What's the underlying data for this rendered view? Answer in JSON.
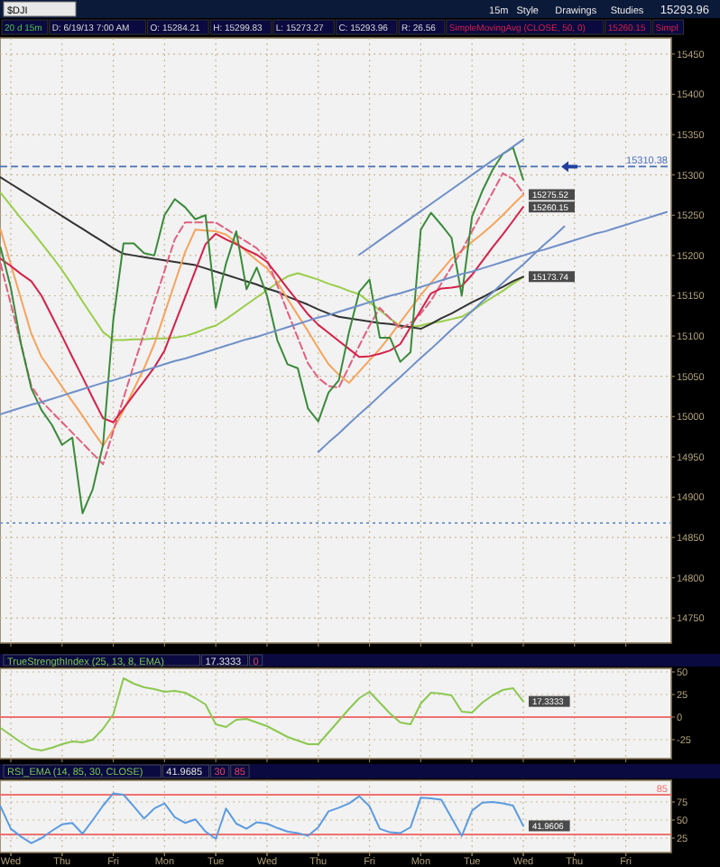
{
  "chart_data": [
    {
      "type": "line",
      "title": "$DJI",
      "annotations": [
        "15m",
        "Style",
        "Drawings",
        "Studies",
        "15293.96",
        "20 d 15m",
        "D: 6/19/13 7:00 AM",
        "O: 15284.21",
        "H: 15299.83",
        "L: 15273.27",
        "C: 15293.96",
        "R: 26.56",
        "SimpleMovingAvg (CLOSE, 50, 0)",
        "15260.15",
        "Simpl"
      ],
      "categories": [
        null,
        null,
        null,
        null,
        null,
        null,
        null,
        null,
        null,
        null,
        null,
        null,
        null,
        null,
        null,
        null,
        null,
        null,
        null,
        null,
        null,
        null,
        null,
        null,
        null,
        null,
        null,
        null,
        null,
        null,
        null,
        null,
        null,
        null,
        null,
        null,
        null,
        null,
        null,
        null,
        null,
        null,
        null,
        null,
        null,
        null,
        null,
        null,
        null,
        null,
        null,
        null,
        null,
        null,
        null,
        null,
        null,
        null,
        null,
        null,
        null,
        null,
        null,
        null,
        null,
        null
      ],
      "ylim": [
        14719,
        15470
      ],
      "yticks": [
        14750,
        14800,
        14850,
        14900,
        14950,
        15000,
        15050,
        15100,
        15150,
        15200,
        15250,
        15300,
        15350,
        15400,
        15450
      ],
      "grid": true,
      "tick_labels": "y",
      "ref_lines": [
        {
          "axis": "y",
          "value": 15310.38,
          "label": "15310.38",
          "color": "#4a6fb5",
          "line_style": "dashed"
        },
        {
          "axis": "y",
          "value": 14868,
          "label": null,
          "color": "#6f8fc8",
          "line_style": "dotted"
        }
      ],
      "series": [
        {
          "color": "#9acd4a",
          "values": [
            15278,
            15262,
            15246,
            15231,
            15215,
            15199,
            15182,
            15163,
            15143,
            15124,
            15105,
            15095,
            15095,
            15096,
            15096,
            15097,
            15097,
            15098,
            15100,
            15104,
            15109,
            15113,
            15121,
            15130,
            15139,
            15148,
            15157,
            15166,
            15174,
            15178,
            15174,
            15170,
            15165,
            15161,
            15156,
            15152,
            15142,
            15132,
            15122,
            15112,
            15111,
            15113,
            15116,
            15118,
            15121,
            15124,
            15131,
            15140,
            15148,
            15156,
            15165,
            15173,
            null,
            null,
            null,
            null,
            null,
            null,
            null,
            null,
            null,
            null,
            null,
            null,
            null,
            null
          ]
        },
        {
          "color": "#333333",
          "values": [
            15297,
            15289,
            15281,
            15273,
            15265,
            15257,
            15249,
            15241,
            15233,
            15225,
            15217,
            15209,
            15202,
            15200,
            15198,
            15196,
            15194,
            15192,
            15190,
            15188,
            15184,
            15180,
            15176,
            15172,
            15168,
            15164,
            15159,
            15155,
            15149,
            15144,
            15139,
            15133,
            15128,
            15124,
            15122,
            15120,
            15118,
            15116,
            15115,
            15113,
            15111,
            15109,
            15115,
            15122,
            15128,
            15135,
            15142,
            15148,
            15155,
            15161,
            15168,
            15173.74,
            null,
            null,
            null,
            null,
            null,
            null,
            null,
            null,
            null,
            null,
            null,
            null,
            null,
            null
          ],
          "value_labels": [
            null,
            null,
            null,
            null,
            null,
            null,
            null,
            null,
            null,
            null,
            null,
            null,
            null,
            null,
            null,
            null,
            null,
            null,
            null,
            null,
            null,
            null,
            null,
            null,
            null,
            null,
            null,
            null,
            null,
            null,
            null,
            null,
            null,
            null,
            null,
            null,
            null,
            null,
            null,
            null,
            null,
            null,
            null,
            null,
            null,
            null,
            null,
            null,
            null,
            null,
            null,
            "15173.74",
            null,
            null,
            null,
            null,
            null,
            null,
            null,
            null,
            null,
            null,
            null,
            null,
            null,
            null
          ]
        },
        {
          "color": "#f5a35c",
          "values": [
            15232,
            15189,
            15146,
            15103,
            15074,
            15056,
            15037,
            15019,
            15001,
            14982,
            14964,
            14984,
            15008,
            15034,
            15060,
            15090,
            15128,
            15166,
            15204,
            15232,
            15231,
            15230,
            15226,
            15216,
            15205,
            15194,
            15184,
            15167,
            15146,
            15126,
            15106,
            15085,
            15065,
            15052,
            15042,
            15056,
            15070,
            15084,
            15100,
            15117,
            15134,
            15151,
            15166,
            15181,
            15196,
            15206,
            15217,
            15227,
            15238,
            15250,
            15263,
            15275.52,
            null,
            null,
            null,
            null,
            null,
            null,
            null,
            null,
            null,
            null,
            null,
            null,
            null,
            null
          ],
          "value_labels": [
            null,
            null,
            null,
            null,
            null,
            null,
            null,
            null,
            null,
            null,
            null,
            null,
            null,
            null,
            null,
            null,
            null,
            null,
            null,
            null,
            null,
            null,
            null,
            null,
            null,
            null,
            null,
            null,
            null,
            null,
            null,
            null,
            null,
            null,
            null,
            null,
            null,
            null,
            null,
            null,
            null,
            null,
            null,
            null,
            null,
            null,
            null,
            null,
            null,
            null,
            null,
            "15275.52",
            null,
            null,
            null,
            null,
            null,
            null,
            null,
            null,
            null,
            null,
            null,
            null,
            null,
            null
          ]
        },
        {
          "color": "#e06080",
          "line_style": "dashed",
          "values": [
            15190,
            15140,
            15090,
            15038,
            15019,
            15006,
            14993,
            14980,
            14967,
            14954,
            14941,
            14982,
            15023,
            15064,
            15103,
            15142,
            15181,
            15220,
            15241,
            15241,
            15241,
            15241,
            15233,
            15225,
            15217,
            15209,
            15195,
            15163,
            15130,
            15098,
            15066,
            15048,
            15038,
            15036,
            15062,
            15088,
            15113,
            15135,
            15122,
            15109,
            15116,
            15128,
            15144,
            15165,
            15186,
            15206,
            15230,
            15254,
            15278,
            15302,
            15295,
            15277,
            null,
            null,
            null,
            null,
            null,
            null,
            null,
            null,
            null,
            null,
            null,
            null,
            null,
            null
          ]
        },
        {
          "color": "#d6204a",
          "values": [
            15196,
            15187,
            15177,
            15168,
            15150,
            15125,
            15100,
            15074,
            15049,
            15023,
            14998,
            14993,
            15010,
            15027,
            15044,
            15061,
            15082,
            15115,
            15148,
            15181,
            15214,
            15227,
            15220,
            15214,
            15207,
            15201,
            15192,
            15176,
            15159,
            15143,
            15127,
            15114,
            15104,
            15094,
            15084,
            15074,
            15075,
            15078,
            15082,
            15090,
            15111,
            15132,
            15153,
            15159,
            15160,
            15162,
            15176,
            15193,
            15210,
            15226,
            15243,
            15260.15,
            null,
            null,
            null,
            null,
            null,
            null,
            null,
            null,
            null,
            null,
            null,
            null,
            null,
            null
          ],
          "value_labels": [
            null,
            null,
            null,
            null,
            null,
            null,
            null,
            null,
            null,
            null,
            null,
            null,
            null,
            null,
            null,
            null,
            null,
            null,
            null,
            null,
            null,
            null,
            null,
            null,
            null,
            null,
            null,
            null,
            null,
            null,
            null,
            null,
            null,
            null,
            null,
            null,
            null,
            null,
            null,
            null,
            null,
            null,
            null,
            null,
            null,
            null,
            null,
            null,
            null,
            null,
            null,
            "15260.15",
            null,
            null,
            null,
            null,
            null,
            null,
            null,
            null,
            null,
            null,
            null,
            null,
            null,
            null
          ]
        },
        {
          "color": "#3a8a3a",
          "values": [
            15210,
            15160,
            15090,
            15035,
            15008,
            14990,
            14965,
            14974,
            14880,
            14910,
            14965,
            15120,
            15215,
            15215,
            15203,
            15200,
            15250,
            15270,
            15260,
            15245,
            15250,
            15135,
            15190,
            15230,
            15158,
            15185,
            15150,
            15095,
            15065,
            15060,
            15010,
            14994,
            15030,
            15045,
            15105,
            15155,
            15170,
            15098,
            15098,
            15068,
            15080,
            15232,
            15253,
            15238,
            15222,
            15150,
            15248,
            15280,
            15306,
            15326,
            15334,
            15294,
            null,
            null,
            null,
            null,
            null,
            null,
            null,
            null,
            null,
            null,
            null,
            null,
            null,
            null
          ]
        },
        {
          "color": "#6f8fc8",
          "values": [
            15003,
            15007,
            15011,
            15015,
            15018,
            15022,
            15026,
            15030,
            15034,
            15038,
            15042,
            15045,
            15049,
            15053,
            15057,
            15061,
            15065,
            15069,
            15072,
            15076,
            15080,
            15084,
            15088,
            15092,
            15096,
            15099,
            15103,
            15107,
            15111,
            15115,
            15119,
            15123,
            15126,
            15130,
            15134,
            15138,
            15142,
            15146,
            15150,
            15153,
            15157,
            15161,
            15165,
            15169,
            15173,
            15177,
            15180,
            15184,
            15188,
            15192,
            15196,
            15200,
            15204,
            15207,
            15211,
            15215,
            15219,
            15223,
            15227,
            15230,
            15234,
            15238,
            15242,
            15246,
            15250,
            15254
          ]
        },
        {
          "color": "#6f8fc8",
          "values": [
            null,
            null,
            null,
            null,
            null,
            null,
            null,
            null,
            null,
            null,
            null,
            null,
            null,
            null,
            null,
            null,
            null,
            null,
            null,
            null,
            null,
            null,
            null,
            null,
            null,
            null,
            null,
            null,
            null,
            null,
            null,
            null,
            null,
            null,
            null,
            15201,
            15210,
            15219,
            15228,
            15237,
            15246,
            15255,
            15264,
            15273,
            15282,
            15291,
            15300,
            15309,
            15318,
            15326,
            15335,
            15344,
            null,
            null,
            null,
            null,
            null,
            null,
            null,
            null,
            null,
            null,
            null,
            null,
            null,
            null
          ]
        },
        {
          "color": "#6f8fc8",
          "values": [
            null,
            null,
            null,
            null,
            null,
            null,
            null,
            null,
            null,
            null,
            null,
            null,
            null,
            null,
            null,
            null,
            null,
            null,
            null,
            null,
            null,
            null,
            null,
            null,
            null,
            null,
            null,
            null,
            null,
            null,
            null,
            14956,
            14968,
            14979,
            14991,
            15003,
            15014,
            15026,
            15038,
            15049,
            15061,
            15073,
            15084,
            15096,
            15108,
            15119,
            15131,
            15143,
            15154,
            15166,
            15178,
            15189,
            15201,
            15213,
            15224,
            15236,
            null,
            null,
            null,
            null,
            null,
            null,
            null,
            null,
            null,
            null
          ]
        }
      ]
    },
    {
      "type": "line",
      "title": "TrueStrengthIndex (25, 13, 8, EMA)",
      "annotations": [
        "17.3333",
        "0"
      ],
      "categories": [
        null,
        null,
        null,
        null,
        null,
        null,
        null,
        null,
        null,
        null,
        null,
        null,
        null,
        null,
        null,
        null,
        null,
        null,
        null,
        null,
        null,
        null,
        null,
        null,
        null,
        null,
        null,
        null,
        null,
        null,
        null,
        null,
        null,
        null,
        null,
        null,
        null,
        null,
        null,
        null,
        null,
        null,
        null,
        null,
        null,
        null,
        null,
        null,
        null,
        null,
        null,
        null,
        null,
        null,
        null,
        null,
        null,
        null,
        null,
        null,
        null,
        null,
        null,
        null,
        null,
        null
      ],
      "ylim": [
        -46,
        54
      ],
      "yticks": [
        -25,
        0,
        25,
        50
      ],
      "grid": true,
      "tick_labels": "y",
      "ref_lines": [
        {
          "axis": "y",
          "value": 0,
          "label": null,
          "color": "#f07070",
          "line_style": "solid"
        }
      ],
      "series": [
        {
          "color": "#8cc850",
          "values": [
            -12,
            -20,
            -28,
            -35,
            -37,
            -34,
            -30,
            -27,
            -28,
            -25,
            -13,
            3,
            43,
            37,
            33,
            31,
            28,
            29,
            27,
            21,
            14,
            -8,
            -11,
            -3,
            -2,
            -6,
            -10,
            -16,
            -22,
            -26,
            -30,
            -30,
            -17,
            -4,
            9,
            21,
            28,
            16,
            4,
            -6,
            -8,
            15,
            27,
            26,
            24,
            6,
            5,
            16,
            24,
            30,
            32,
            17.3333,
            null,
            null,
            null,
            null,
            null,
            null,
            null,
            null,
            null,
            null,
            null,
            null,
            null,
            null
          ],
          "value_labels": [
            null,
            null,
            null,
            null,
            null,
            null,
            null,
            null,
            null,
            null,
            null,
            null,
            null,
            null,
            null,
            null,
            null,
            null,
            null,
            null,
            null,
            null,
            null,
            null,
            null,
            null,
            null,
            null,
            null,
            null,
            null,
            null,
            null,
            null,
            null,
            null,
            null,
            null,
            null,
            null,
            null,
            null,
            null,
            null,
            null,
            null,
            null,
            null,
            null,
            null,
            null,
            "17.3333",
            null,
            null,
            null,
            null,
            null,
            null,
            null,
            null,
            null,
            null,
            null,
            null,
            null,
            null
          ]
        }
      ]
    },
    {
      "type": "line",
      "title": "RSI_EMA (14, 85, 30, CLOSE)",
      "annotations": [
        "41.9685",
        "30",
        "85"
      ],
      "categories": [
        null,
        "Wed",
        null,
        null,
        null,
        null,
        "Thu",
        null,
        null,
        null,
        null,
        "Fri",
        null,
        null,
        null,
        null,
        "Mon",
        null,
        null,
        null,
        null,
        "Tue",
        null,
        null,
        null,
        null,
        "Wed",
        null,
        null,
        null,
        null,
        "Thu",
        null,
        null,
        null,
        null,
        "Fri",
        null,
        null,
        null,
        null,
        "Mon",
        null,
        null,
        null,
        null,
        "Tue",
        null,
        null,
        null,
        null,
        "Wed",
        null,
        null,
        null,
        null,
        "Thu",
        null,
        null,
        null,
        null,
        "Fri",
        null,
        null,
        null,
        null
      ],
      "ylim": [
        5,
        105
      ],
      "yticks": [
        25,
        50,
        75
      ],
      "grid": true,
      "ref_lines": [
        {
          "axis": "y",
          "value": 85,
          "label": "85",
          "color": "#f07070",
          "line_style": "solid"
        },
        {
          "axis": "y",
          "value": 30,
          "label": null,
          "color": "#f07070",
          "line_style": "solid"
        }
      ],
      "series": [
        {
          "color": "#5b9be0",
          "values": [
            69,
            38,
            27,
            18,
            25,
            35,
            44,
            46,
            31,
            50,
            70,
            87,
            85,
            69,
            52,
            66,
            73,
            54,
            46,
            51,
            34,
            24,
            66,
            45,
            38,
            47,
            45,
            39,
            34,
            32,
            28,
            40,
            62,
            67,
            73,
            83,
            69,
            38,
            33,
            32,
            40,
            81,
            80,
            78,
            53,
            28,
            63,
            74,
            75,
            73,
            70,
            41.9606,
            null,
            null,
            null,
            null,
            null,
            null,
            null,
            null,
            null,
            null,
            null,
            null,
            null,
            null
          ],
          "value_labels": [
            null,
            null,
            null,
            null,
            null,
            null,
            null,
            null,
            null,
            null,
            null,
            null,
            null,
            null,
            null,
            null,
            null,
            null,
            null,
            null,
            null,
            null,
            null,
            null,
            null,
            null,
            null,
            null,
            null,
            null,
            null,
            null,
            null,
            null,
            null,
            null,
            null,
            null,
            null,
            null,
            null,
            null,
            null,
            null,
            null,
            null,
            null,
            null,
            null,
            null,
            null,
            "41.9606",
            null,
            null,
            null,
            null,
            null,
            null,
            null,
            null,
            null,
            null,
            null,
            null,
            null,
            null
          ]
        }
      ]
    }
  ]
}
